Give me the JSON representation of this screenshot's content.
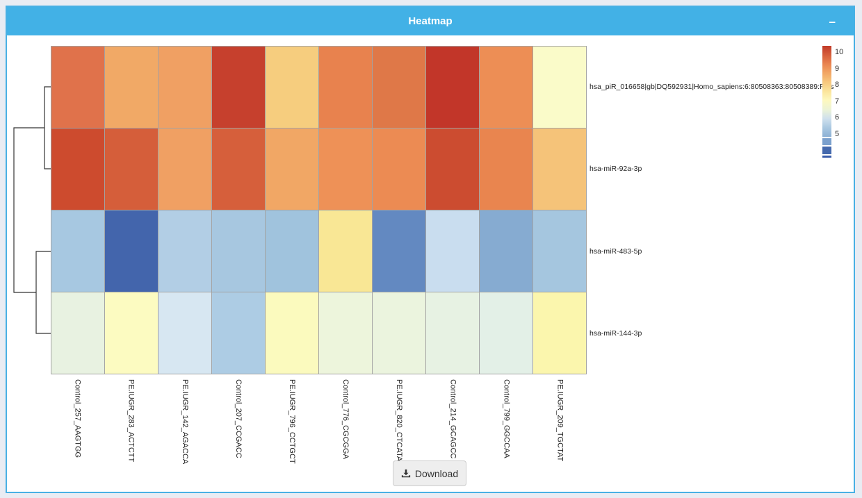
{
  "panel": {
    "title": "Heatmap",
    "minimize_label": "–"
  },
  "chart_data": {
    "type": "heatmap",
    "title": "Heatmap",
    "rows": [
      "hsa_piR_016658|gb|DQ592931|Homo_sapiens:6:80508363:80508389:Plus",
      "hsa-miR-92a-3p",
      "hsa-miR-483-5p",
      "hsa-miR-144-3p"
    ],
    "columns": [
      "Control_257_AAGTGG",
      "PE.IUGR_283_ACTCTT",
      "PE.IUGR_142_AGACCA",
      "Control_207_CCGACC",
      "PE.IUGR_796_CCTGCT",
      "Control_776_CGCGGA",
      "PE.IUGR_820_CTCATA",
      "Control_214_GCAGCC",
      "Control_799_GGCCAA",
      "PE.IUGR_209_TGCTAT"
    ],
    "values": [
      [
        9.2,
        8.7,
        8.8,
        10.0,
        8.3,
        9.1,
        9.2,
        10.0,
        9.0,
        7.4
      ],
      [
        9.8,
        9.6,
        8.8,
        9.6,
        8.7,
        8.9,
        9.0,
        9.8,
        9.1,
        8.4
      ],
      [
        5.6,
        4.5,
        5.7,
        5.6,
        5.5,
        8.0,
        4.9,
        6.0,
        5.2,
        5.6
      ],
      [
        6.8,
        7.3,
        6.2,
        5.7,
        7.3,
        6.9,
        6.9,
        6.8,
        6.7,
        7.4
      ]
    ],
    "cell_colors": [
      [
        "#e0724b",
        "#f1a966",
        "#f0a063",
        "#c6402d",
        "#f6cd7e",
        "#e8824e",
        "#df7848",
        "#c23629",
        "#ed8e55",
        "#fafbc9"
      ],
      [
        "#cd4b2e",
        "#d55e3a",
        "#f0a063",
        "#d65f3b",
        "#f1a765",
        "#ee9157",
        "#ec8b53",
        "#cc4c30",
        "#e9854f",
        "#f5c379"
      ],
      [
        "#a7c8e1",
        "#4365ac",
        "#b2cee5",
        "#a7c7e0",
        "#a0c3dd",
        "#f9e795",
        "#6389c1",
        "#c9ddef",
        "#86abd1",
        "#a5c6df"
      ],
      [
        "#e8f2e1",
        "#fcfbc1",
        "#d7e7f2",
        "#adcce4",
        "#fbfabe",
        "#edf5dc",
        "#ebf4de",
        "#e7f2e3",
        "#e3f0e7",
        "#fbf6ad"
      ]
    ],
    "row_dendrogram": {
      "clusters": [
        [
          "hsa_piR_016658...",
          "hsa-miR-92a-3p"
        ],
        [
          "hsa-miR-483-5p",
          "hsa-miR-144-3p"
        ]
      ]
    },
    "legend": {
      "ticks": [
        "10",
        "9",
        "8",
        "7",
        "6",
        "5"
      ],
      "gradient_stops": [
        "#c13a28",
        "#d65e3b",
        "#e98450",
        "#f2a765",
        "#f7c87e",
        "#fbe59c",
        "#fdf8bf",
        "#ecf3d6",
        "#cfe0ed",
        "#a9c8e1",
        "#8db1d5"
      ],
      "extra_swatches": [
        "#7ba0cd",
        "#4569ad"
      ],
      "end_line_color": "#3a5ca9",
      "position": "right"
    },
    "grid_on": true
  },
  "download": {
    "label": "Download"
  },
  "colors": {
    "header_bg": "#42b1e6",
    "panel_border": "#48b0e4",
    "page_bg": "#e9ecf3",
    "grid_line": "#a3a3a3"
  }
}
